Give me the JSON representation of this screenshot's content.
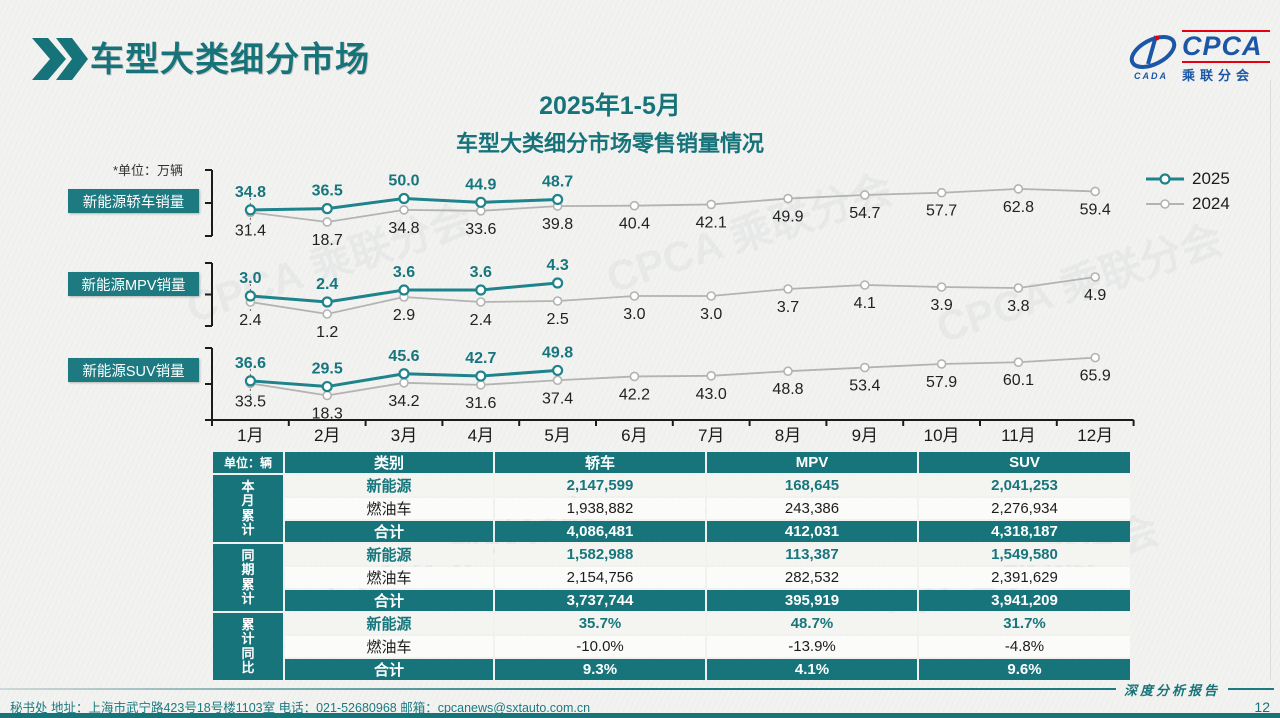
{
  "header": {
    "title": "车型大类细分市场"
  },
  "logo": {
    "acronym": "CPCA",
    "chinese": "乘联分会",
    "swoosh_text": "CADA"
  },
  "chart_header": {
    "line1": "2025年1-5月",
    "line2": "车型大类细分市场零售销量情况",
    "unit_note": "*单位：万辆"
  },
  "legend": {
    "y2025": "2025",
    "y2024": "2024"
  },
  "chart_data": {
    "type": "line",
    "title": "2025年1-5月 车型大类细分市场零售销量情况",
    "unit": "万辆",
    "legend_position": "top-right",
    "colors": {
      "s2025": "#1e838a",
      "s2024": "#b3b3b3"
    },
    "x": [
      "1月",
      "2月",
      "3月",
      "4月",
      "5月",
      "6月",
      "7月",
      "8月",
      "9月",
      "10月",
      "11月",
      "12月"
    ],
    "panels": [
      {
        "name": "新能源轿车销量",
        "series": [
          {
            "name": "2025",
            "values": [
              34.8,
              36.5,
              50.0,
              44.9,
              48.7
            ]
          },
          {
            "name": "2024",
            "values": [
              31.4,
              18.7,
              34.8,
              33.6,
              39.8,
              40.4,
              42.1,
              49.9,
              54.7,
              57.7,
              62.8,
              59.4
            ]
          }
        ]
      },
      {
        "name": "新能源MPV销量",
        "series": [
          {
            "name": "2025",
            "values": [
              3.0,
              2.4,
              3.6,
              3.6,
              4.3
            ]
          },
          {
            "name": "2024",
            "values": [
              2.4,
              1.2,
              2.9,
              2.4,
              2.5,
              3.0,
              3.0,
              3.7,
              4.1,
              3.9,
              3.8,
              4.9
            ]
          }
        ]
      },
      {
        "name": "新能源SUV销量",
        "series": [
          {
            "name": "2025",
            "values": [
              36.6,
              29.5,
              45.6,
              42.7,
              49.8
            ]
          },
          {
            "name": "2024",
            "values": [
              33.5,
              18.3,
              34.2,
              31.6,
              37.4,
              42.2,
              43.0,
              48.8,
              53.4,
              57.9,
              60.1,
              65.9
            ]
          }
        ]
      }
    ]
  },
  "table": {
    "unit_header": "单位：辆",
    "col_headers": [
      "类别",
      "轿车",
      "MPV",
      "SUV"
    ],
    "groups": [
      {
        "label": "本月累计",
        "rows": [
          {
            "name": "新能源",
            "style": "nev",
            "values": [
              "2,147,599",
              "168,645",
              "2,041,253"
            ]
          },
          {
            "name": "燃油车",
            "style": "ice",
            "values": [
              "1,938,882",
              "243,386",
              "2,276,934"
            ]
          },
          {
            "name": "合计",
            "style": "total",
            "values": [
              "4,086,481",
              "412,031",
              "4,318,187"
            ]
          }
        ]
      },
      {
        "label": "同期累计",
        "rows": [
          {
            "name": "新能源",
            "style": "nev",
            "values": [
              "1,582,988",
              "113,387",
              "1,549,580"
            ]
          },
          {
            "name": "燃油车",
            "style": "ice",
            "values": [
              "2,154,756",
              "282,532",
              "2,391,629"
            ]
          },
          {
            "name": "合计",
            "style": "total",
            "values": [
              "3,737,744",
              "395,919",
              "3,941,209"
            ]
          }
        ]
      },
      {
        "label": "累计同比",
        "rows": [
          {
            "name": "新能源",
            "style": "nev",
            "values": [
              "35.7%",
              "48.7%",
              "31.7%"
            ]
          },
          {
            "name": "燃油车",
            "style": "ice",
            "values": [
              "-10.0%",
              "-13.9%",
              "-4.8%"
            ]
          },
          {
            "name": "合计",
            "style": "total",
            "values": [
              "9.3%",
              "4.1%",
              "9.6%"
            ]
          }
        ]
      }
    ]
  },
  "footer": {
    "left_text": "秘书处   地址：上海市武宁路423号18号楼1103室  电话：021-52680968   邮箱：cpcanews@sxtauto.com.cn",
    "report_label": "深度分析报告",
    "page_number": "12"
  },
  "watermark_text": "CPCA 乘联分会"
}
